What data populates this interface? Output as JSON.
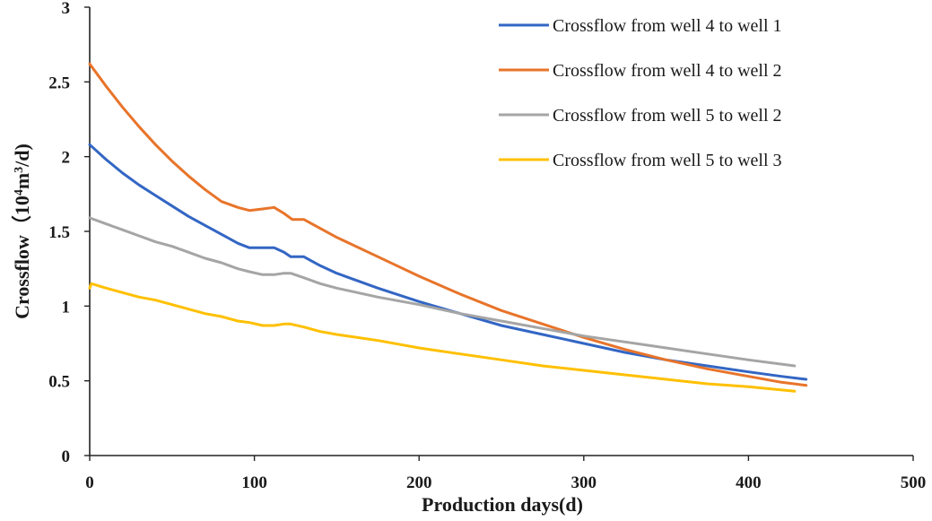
{
  "chart_data": {
    "type": "line",
    "title": "",
    "xlabel": "Production  days(d)",
    "ylabel_prefix": "Crossflow（10",
    "ylabel_sup": "4",
    "ylabel_mid": "m",
    "ylabel_sup2": "3",
    "ylabel_suffix": "/d)",
    "xlim": [
      0,
      500
    ],
    "ylim": [
      0,
      3
    ],
    "xticks": [
      0,
      100,
      200,
      300,
      400,
      500
    ],
    "xtick_labels": [
      "0",
      "100",
      "200",
      "300",
      "400",
      "500"
    ],
    "yticks": [
      0,
      0.5,
      1,
      1.5,
      2,
      2.5,
      3
    ],
    "ytick_labels": [
      "0",
      "0.5",
      "1",
      "1.5",
      "2",
      "2.5",
      "3"
    ],
    "legend_position": "top-right",
    "series": [
      {
        "name": "Crossflow from well 4 to well 1",
        "color": "#3366c4",
        "x": [
          0,
          10,
          20,
          30,
          40,
          50,
          60,
          70,
          80,
          90,
          97,
          105,
          112,
          118,
          122,
          125,
          130,
          140,
          150,
          175,
          200,
          225,
          250,
          275,
          300,
          325,
          350,
          375,
          400,
          420,
          435
        ],
        "y": [
          2.08,
          1.98,
          1.89,
          1.81,
          1.74,
          1.67,
          1.6,
          1.54,
          1.48,
          1.42,
          1.39,
          1.39,
          1.39,
          1.36,
          1.33,
          1.33,
          1.33,
          1.27,
          1.22,
          1.12,
          1.03,
          0.95,
          0.87,
          0.81,
          0.75,
          0.69,
          0.64,
          0.6,
          0.56,
          0.53,
          0.51
        ]
      },
      {
        "name": "Crossflow from well 4 to well 2",
        "color": "#e8742a",
        "x": [
          0,
          10,
          20,
          30,
          40,
          50,
          60,
          70,
          80,
          90,
          97,
          105,
          112,
          118,
          123,
          126,
          130,
          140,
          150,
          175,
          200,
          225,
          250,
          275,
          300,
          325,
          350,
          375,
          400,
          420,
          435
        ],
        "y": [
          2.62,
          2.47,
          2.33,
          2.2,
          2.08,
          1.97,
          1.87,
          1.78,
          1.7,
          1.66,
          1.64,
          1.65,
          1.66,
          1.62,
          1.58,
          1.58,
          1.58,
          1.52,
          1.46,
          1.33,
          1.2,
          1.08,
          0.97,
          0.88,
          0.79,
          0.71,
          0.64,
          0.58,
          0.53,
          0.49,
          0.47
        ]
      },
      {
        "name": "Crossflow from well 5 to well 2",
        "color": "#a5a5a5",
        "x": [
          0,
          10,
          20,
          30,
          40,
          50,
          60,
          70,
          80,
          90,
          97,
          105,
          112,
          118,
          122,
          130,
          140,
          150,
          175,
          200,
          225,
          250,
          275,
          300,
          325,
          350,
          375,
          400,
          428
        ],
        "y": [
          1.59,
          1.55,
          1.51,
          1.47,
          1.43,
          1.4,
          1.36,
          1.32,
          1.29,
          1.25,
          1.23,
          1.21,
          1.21,
          1.22,
          1.22,
          1.19,
          1.15,
          1.12,
          1.06,
          1.01,
          0.95,
          0.9,
          0.85,
          0.8,
          0.76,
          0.72,
          0.68,
          0.64,
          0.6
        ]
      },
      {
        "name": "Crossflow from well 5 to well 3",
        "color": "#ffc000",
        "x": [
          0,
          1,
          10,
          20,
          30,
          40,
          50,
          60,
          70,
          80,
          90,
          97,
          105,
          112,
          118,
          122,
          130,
          140,
          150,
          175,
          200,
          225,
          250,
          275,
          300,
          325,
          350,
          375,
          400,
          428
        ],
        "y": [
          1.12,
          1.15,
          1.12,
          1.09,
          1.06,
          1.04,
          1.01,
          0.98,
          0.95,
          0.93,
          0.9,
          0.89,
          0.87,
          0.87,
          0.88,
          0.88,
          0.86,
          0.83,
          0.81,
          0.77,
          0.72,
          0.68,
          0.64,
          0.6,
          0.57,
          0.54,
          0.51,
          0.48,
          0.46,
          0.43
        ]
      }
    ]
  }
}
